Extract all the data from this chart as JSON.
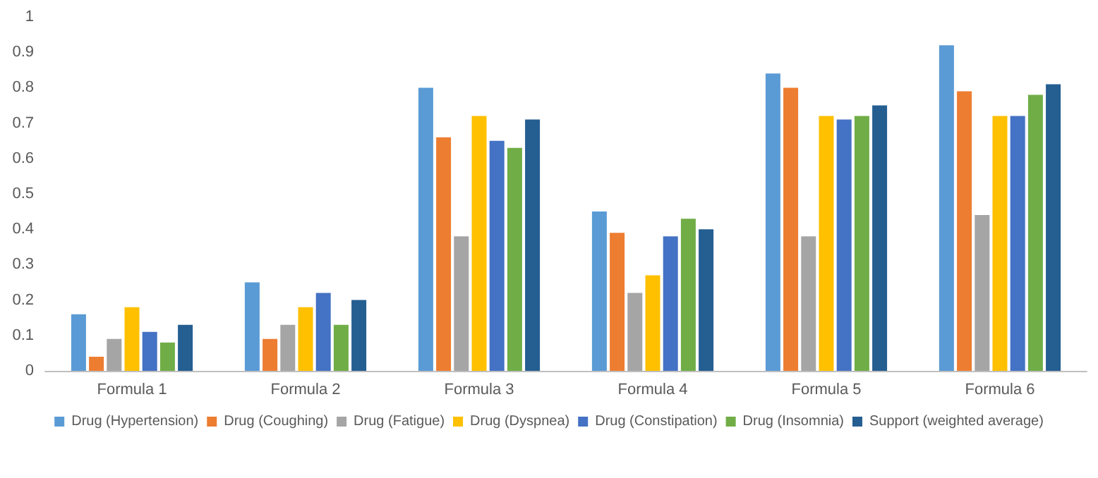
{
  "chart_data": {
    "type": "bar",
    "categories": [
      "Formula 1",
      "Formula 2",
      "Formula 3",
      "Formula 4",
      "Formula 5",
      "Formula 6"
    ],
    "series": [
      {
        "name": "Drug (Hypertension)",
        "color": "#5b9bd5",
        "values": [
          0.16,
          0.25,
          0.8,
          0.45,
          0.84,
          0.92
        ]
      },
      {
        "name": "Drug (Coughing)",
        "color": "#ed7d31",
        "values": [
          0.04,
          0.09,
          0.66,
          0.39,
          0.8,
          0.79
        ]
      },
      {
        "name": "Drug (Fatigue)",
        "color": "#a5a5a5",
        "values": [
          0.09,
          0.13,
          0.38,
          0.22,
          0.38,
          0.44
        ]
      },
      {
        "name": "Drug (Dyspnea)",
        "color": "#ffc000",
        "values": [
          0.18,
          0.18,
          0.72,
          0.27,
          0.72,
          0.72
        ]
      },
      {
        "name": "Drug (Constipation)",
        "color": "#4472c4",
        "values": [
          0.11,
          0.22,
          0.65,
          0.38,
          0.71,
          0.72
        ]
      },
      {
        "name": "Drug (Insomnia)",
        "color": "#70ad47",
        "values": [
          0.08,
          0.13,
          0.63,
          0.43,
          0.72,
          0.78
        ]
      },
      {
        "name": "Support (weighted average)",
        "color": "#255e91",
        "values": [
          0.13,
          0.2,
          0.71,
          0.4,
          0.75,
          0.81
        ]
      }
    ],
    "ylim": [
      0,
      1
    ],
    "yticks": [
      0,
      0.1,
      0.2,
      0.3,
      0.4,
      0.5,
      0.6,
      0.7,
      0.8,
      0.9,
      1
    ],
    "grid": false,
    "legend": "bottom"
  }
}
